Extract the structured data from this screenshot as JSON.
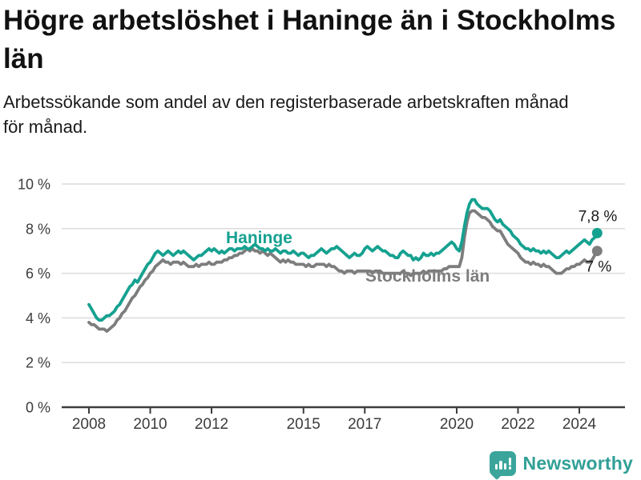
{
  "header": {
    "title": "Högre arbetslöshet i Haninge än i Stockholms län",
    "subtitle": "Arbetssökande som andel av den registerbaserade arbetskraften månad för månad."
  },
  "footer": {
    "brand": "Newsworthy"
  },
  "colors": {
    "haninge": "#15a190",
    "stockholm": "#7d7d7d",
    "grid": "#dcdcdc",
    "axis": "#3d3d3d",
    "tick_label": "#3c3c3c",
    "value_label": "#191919",
    "brand_teal": "#3ba59b",
    "brand_text": "#31a096"
  },
  "chart_data": {
    "type": "line",
    "unit": "%",
    "x_start_year": 2008,
    "points_per_year": 12,
    "x_range": [
      2008.0,
      2024.67
    ],
    "ylim": [
      0,
      10.5
    ],
    "grid": true,
    "x_ticks": [
      2008,
      2010,
      2012,
      2015,
      2017,
      2020,
      2022,
      2024
    ],
    "y_ticks": [
      0,
      2,
      4,
      6,
      8,
      10
    ],
    "y_tick_labels": [
      "0 %",
      "2 %",
      "4 %",
      "6 %",
      "8 %",
      "10 %"
    ],
    "series": [
      {
        "id": "stockholm",
        "name": "Stockholms län",
        "color": "#7d7d7d",
        "end_label": "7 %",
        "values": [
          3.8,
          3.7,
          3.7,
          3.6,
          3.5,
          3.5,
          3.5,
          3.4,
          3.5,
          3.6,
          3.7,
          3.9,
          4.0,
          4.2,
          4.3,
          4.5,
          4.7,
          4.9,
          5.0,
          5.2,
          5.4,
          5.5,
          5.7,
          5.8,
          6.0,
          6.1,
          6.3,
          6.4,
          6.5,
          6.6,
          6.5,
          6.5,
          6.4,
          6.5,
          6.5,
          6.5,
          6.4,
          6.5,
          6.4,
          6.3,
          6.3,
          6.3,
          6.4,
          6.3,
          6.4,
          6.4,
          6.4,
          6.5,
          6.4,
          6.4,
          6.5,
          6.5,
          6.5,
          6.6,
          6.6,
          6.7,
          6.7,
          6.8,
          6.8,
          6.9,
          6.9,
          7.0,
          7.1,
          7.0,
          7.1,
          7.0,
          7.0,
          6.9,
          7.0,
          6.9,
          6.8,
          6.9,
          6.8,
          6.7,
          6.6,
          6.5,
          6.6,
          6.5,
          6.6,
          6.5,
          6.5,
          6.4,
          6.4,
          6.4,
          6.4,
          6.3,
          6.4,
          6.3,
          6.3,
          6.4,
          6.4,
          6.4,
          6.4,
          6.3,
          6.4,
          6.3,
          6.3,
          6.2,
          6.1,
          6.1,
          6.0,
          6.1,
          6.1,
          6.1,
          6.0,
          6.1,
          6.1,
          6.1,
          6.1,
          6.1,
          6.1,
          6.0,
          6.1,
          6.1,
          6.1,
          6.0,
          6.0,
          6.0,
          6.0,
          6.0,
          6.0,
          6.0,
          6.0,
          6.1,
          6.0,
          6.0,
          5.9,
          6.0,
          6.0,
          6.0,
          6.0,
          6.1,
          6.0,
          6.1,
          6.1,
          6.1,
          6.1,
          6.1,
          6.1,
          6.2,
          6.2,
          6.3,
          6.3,
          6.3,
          6.3,
          6.3,
          6.7,
          7.6,
          8.3,
          8.7,
          8.8,
          8.8,
          8.7,
          8.6,
          8.5,
          8.5,
          8.4,
          8.3,
          8.1,
          8.0,
          7.9,
          7.9,
          7.7,
          7.5,
          7.3,
          7.2,
          7.1,
          7.0,
          6.9,
          6.7,
          6.6,
          6.5,
          6.5,
          6.4,
          6.5,
          6.4,
          6.4,
          6.3,
          6.4,
          6.3,
          6.3,
          6.2,
          6.1,
          6.0,
          6.0,
          6.0,
          6.1,
          6.2,
          6.2,
          6.3,
          6.3,
          6.4,
          6.4,
          6.5,
          6.6,
          6.5,
          6.5,
          6.6,
          6.8,
          7.0
        ]
      },
      {
        "id": "haninge",
        "name": "Haninge",
        "color": "#15a190",
        "end_label": "7,8 %",
        "values": [
          4.6,
          4.4,
          4.2,
          4.0,
          3.9,
          3.9,
          4.0,
          4.1,
          4.1,
          4.2,
          4.3,
          4.5,
          4.6,
          4.8,
          5.0,
          5.2,
          5.4,
          5.5,
          5.7,
          5.6,
          5.8,
          6.0,
          6.2,
          6.4,
          6.5,
          6.7,
          6.9,
          7.0,
          6.9,
          6.8,
          6.9,
          7.0,
          6.9,
          6.8,
          6.9,
          7.0,
          6.9,
          7.0,
          6.9,
          6.8,
          6.7,
          6.6,
          6.7,
          6.8,
          6.8,
          6.9,
          7.0,
          7.1,
          7.0,
          7.1,
          7.0,
          6.9,
          7.0,
          6.9,
          7.0,
          7.1,
          7.1,
          7.0,
          7.1,
          7.1,
          7.1,
          7.2,
          7.1,
          7.1,
          7.2,
          7.3,
          7.2,
          7.1,
          7.1,
          7.0,
          7.1,
          7.0,
          7.0,
          7.1,
          7.0,
          6.9,
          7.0,
          7.0,
          6.9,
          6.9,
          7.0,
          6.9,
          6.8,
          6.9,
          6.9,
          6.8,
          6.7,
          6.8,
          6.8,
          6.9,
          7.0,
          7.1,
          7.0,
          6.9,
          7.0,
          7.1,
          7.1,
          7.2,
          7.1,
          7.0,
          6.9,
          6.8,
          6.7,
          6.8,
          6.9,
          6.8,
          6.8,
          6.9,
          7.1,
          7.2,
          7.1,
          7.0,
          7.1,
          7.2,
          7.1,
          7.0,
          7.0,
          6.9,
          6.8,
          6.8,
          6.7,
          6.7,
          6.9,
          7.0,
          6.9,
          6.8,
          6.8,
          6.6,
          6.7,
          6.6,
          6.7,
          6.9,
          6.8,
          6.8,
          6.9,
          6.8,
          6.9,
          6.9,
          7.0,
          7.1,
          7.2,
          7.3,
          7.4,
          7.3,
          7.1,
          7.0,
          7.4,
          8.1,
          8.7,
          9.1,
          9.3,
          9.3,
          9.1,
          9.0,
          8.9,
          8.9,
          8.9,
          8.8,
          8.6,
          8.4,
          8.3,
          8.4,
          8.2,
          8.1,
          8.0,
          7.9,
          7.7,
          7.6,
          7.5,
          7.3,
          7.2,
          7.1,
          7.1,
          7.0,
          7.1,
          7.0,
          7.0,
          6.9,
          7.0,
          6.9,
          7.0,
          6.9,
          6.8,
          6.7,
          6.7,
          6.8,
          6.9,
          7.0,
          6.9,
          7.0,
          7.1,
          7.2,
          7.3,
          7.4,
          7.5,
          7.4,
          7.3,
          7.5,
          7.6,
          7.8
        ]
      }
    ],
    "annotations": [
      {
        "id": "haninge",
        "text": "Haninge",
        "x": 2012.47,
        "y": 7.35,
        "color": "#15a190"
      },
      {
        "id": "stockholm",
        "text": "Stockholms län",
        "x": 2017.02,
        "y": 5.63,
        "color": "#7d7d7d"
      }
    ]
  }
}
